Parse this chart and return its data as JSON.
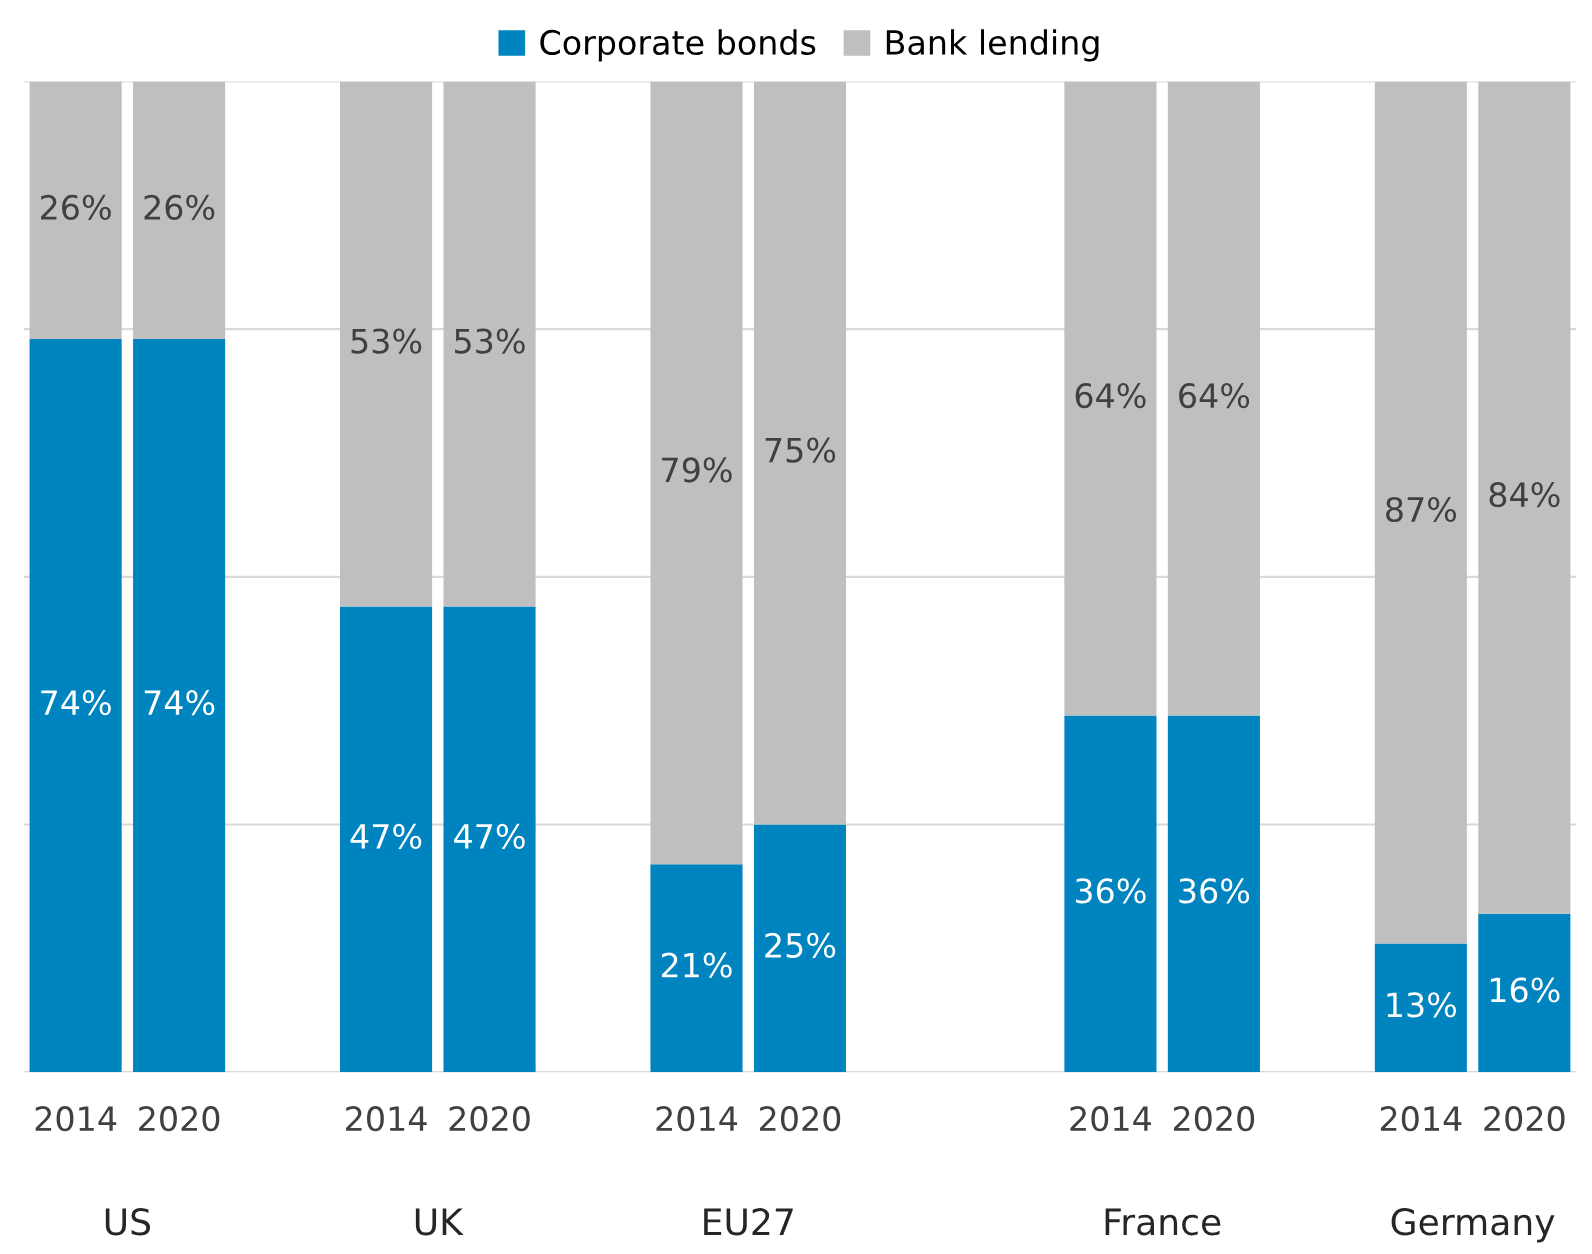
{
  "chart_data": {
    "type": "bar",
    "stacked": true,
    "categories": [
      "2014",
      "2020",
      null,
      "2014",
      "2020",
      null,
      "2014",
      "2020",
      null,
      null,
      "2014",
      "2020",
      null,
      "2014",
      "2020"
    ],
    "series": [
      {
        "name": "Corporate bonds",
        "color": "#0084bf",
        "values": [
          74,
          74,
          null,
          47,
          47,
          null,
          21,
          25,
          null,
          null,
          36,
          36,
          null,
          13,
          16
        ],
        "value_labels": [
          "74%",
          "74%",
          null,
          "47%",
          "47%",
          null,
          "21%",
          "25%",
          null,
          null,
          "36%",
          "36%",
          null,
          "13%",
          "16%"
        ]
      },
      {
        "name": "Bank lending",
        "color": "#bfbfbf",
        "values": [
          26,
          26,
          null,
          53,
          53,
          null,
          79,
          75,
          null,
          null,
          64,
          64,
          null,
          87,
          84
        ],
        "value_labels": [
          "26%",
          "26%",
          null,
          "53%",
          "53%",
          null,
          "79%",
          "75%",
          null,
          null,
          "64%",
          "64%",
          null,
          "87%",
          "84%"
        ]
      }
    ],
    "annotations": [
      "US",
      "UK",
      "EU27",
      "France",
      "Germany"
    ],
    "ylim": [
      0,
      100
    ],
    "yticks": [
      {
        "value": 0,
        "label": null
      },
      {
        "value": 25,
        "label": null
      },
      {
        "value": 50,
        "label": null
      },
      {
        "value": 75,
        "label": null
      },
      {
        "value": 100,
        "label": null
      }
    ],
    "tick_labels": "x",
    "grid": "y",
    "legend": "top"
  }
}
